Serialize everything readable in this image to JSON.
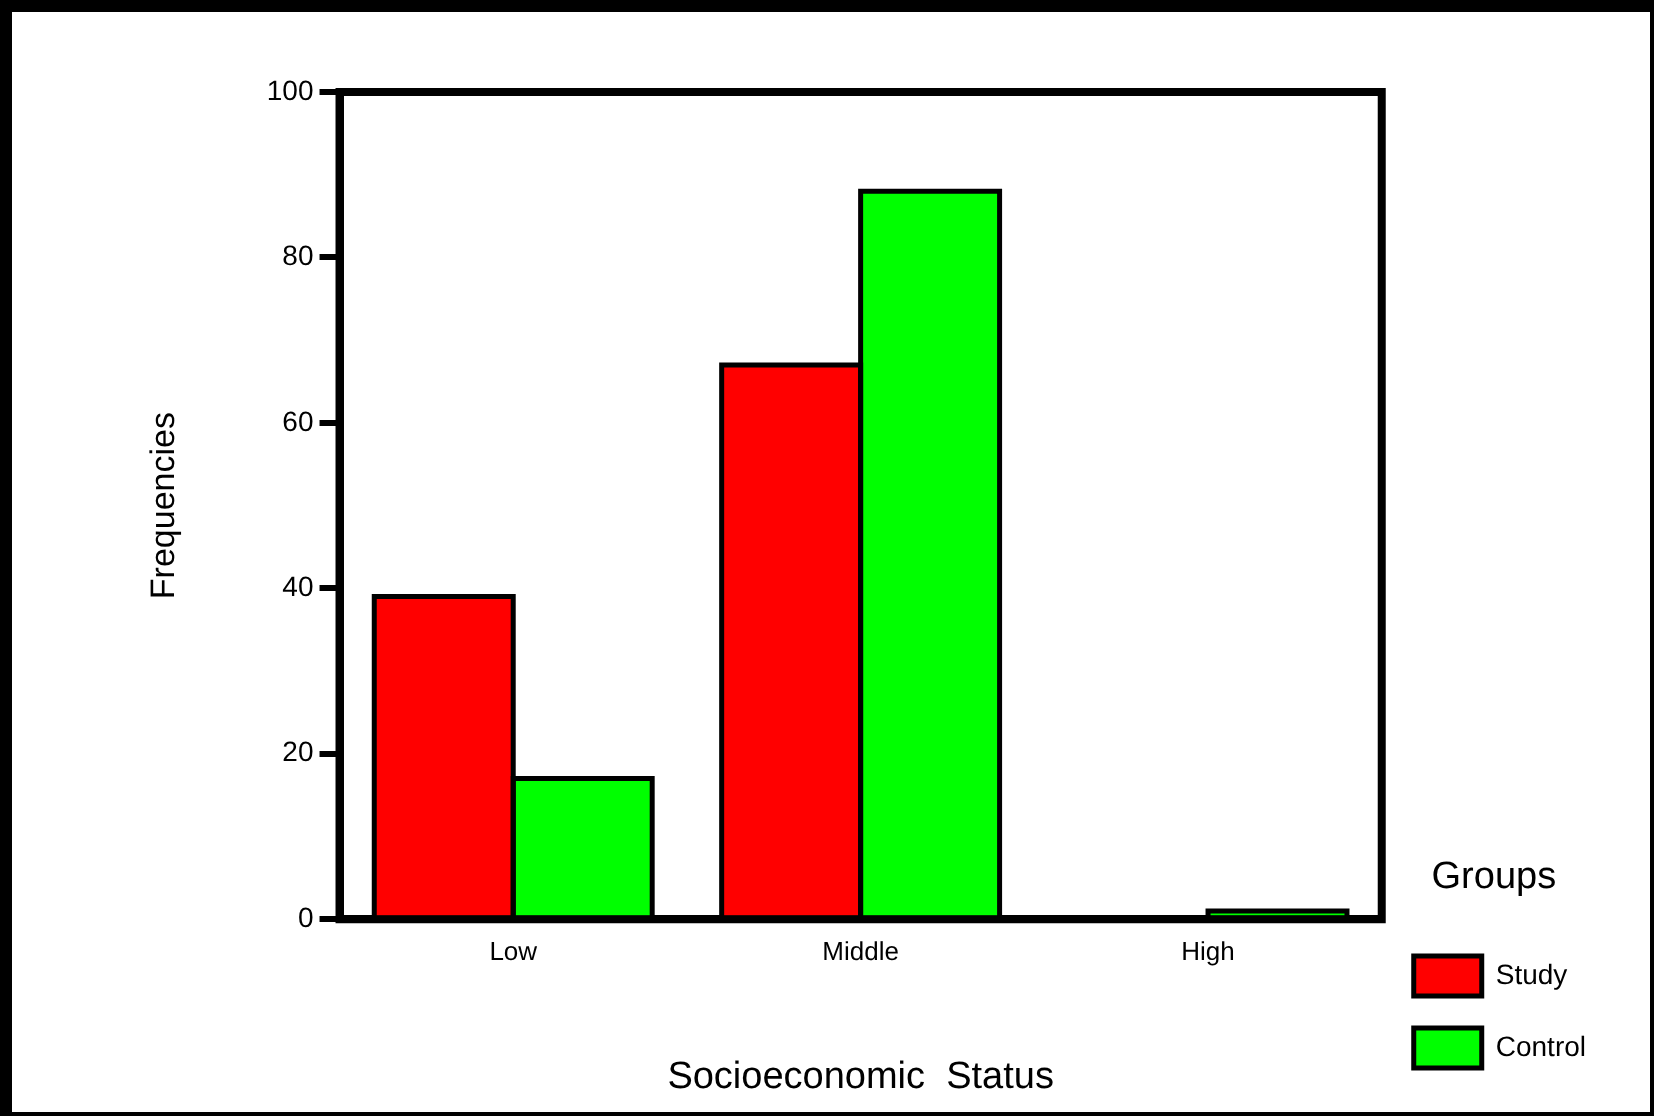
{
  "chart_data": {
    "type": "bar",
    "xlabel": "Socioeconomic  Status",
    "ylabel": "Frequencies",
    "legend_title": "Groups",
    "categories": [
      "Low",
      "Middle",
      "High"
    ],
    "series": [
      {
        "name": "Study",
        "color": "#ff0000",
        "values": [
          39,
          67,
          0
        ]
      },
      {
        "name": "Control",
        "color": "#00ff00",
        "values": [
          17,
          88,
          1
        ]
      }
    ],
    "ylim": [
      0,
      100
    ],
    "yticks": [
      0,
      20,
      40,
      60,
      80,
      100
    ],
    "grid": false,
    "legend": "right"
  }
}
